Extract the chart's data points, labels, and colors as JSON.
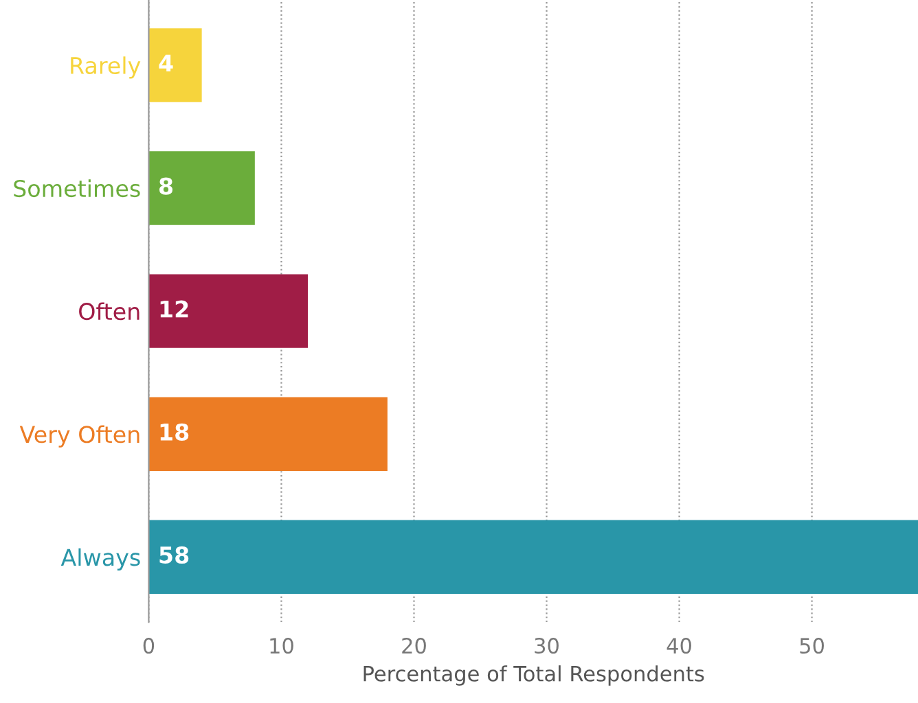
{
  "chart_data": {
    "type": "bar",
    "orientation": "horizontal",
    "xlabel": "Percentage of Total Respondents",
    "categories": [
      "Rarely",
      "Sometimes",
      "Often",
      "Very Often",
      "Always"
    ],
    "values": [
      4,
      8,
      12,
      18,
      58
    ],
    "colors": [
      "#f6d43c",
      "#6bad3b",
      "#a01d46",
      "#ec7c24",
      "#2996a8"
    ],
    "xlim": [
      0,
      58
    ],
    "xticks": [
      0,
      10,
      20,
      30,
      40,
      50
    ],
    "grid": "x",
    "data_labels": true
  }
}
